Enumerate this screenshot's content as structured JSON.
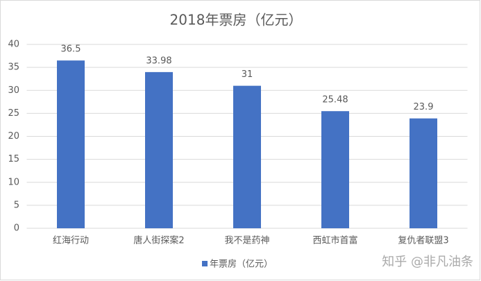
{
  "chart_data": {
    "type": "bar",
    "title": "2018年票房（亿元）",
    "categories": [
      "红海行动",
      "唐人街探案2",
      "我不是药神",
      "西虹市首富",
      "复仇者联盟3"
    ],
    "series": [
      {
        "name": "年票房（亿元）",
        "color": "#4472c4",
        "values": [
          36.5,
          33.98,
          31,
          25.48,
          23.9
        ]
      }
    ],
    "ylim": [
      0,
      40
    ],
    "yticks": [
      0,
      5,
      10,
      15,
      20,
      25,
      30,
      35,
      40
    ],
    "grid": true,
    "legend": "bottom",
    "watermark": "知乎 @非凡油条"
  }
}
